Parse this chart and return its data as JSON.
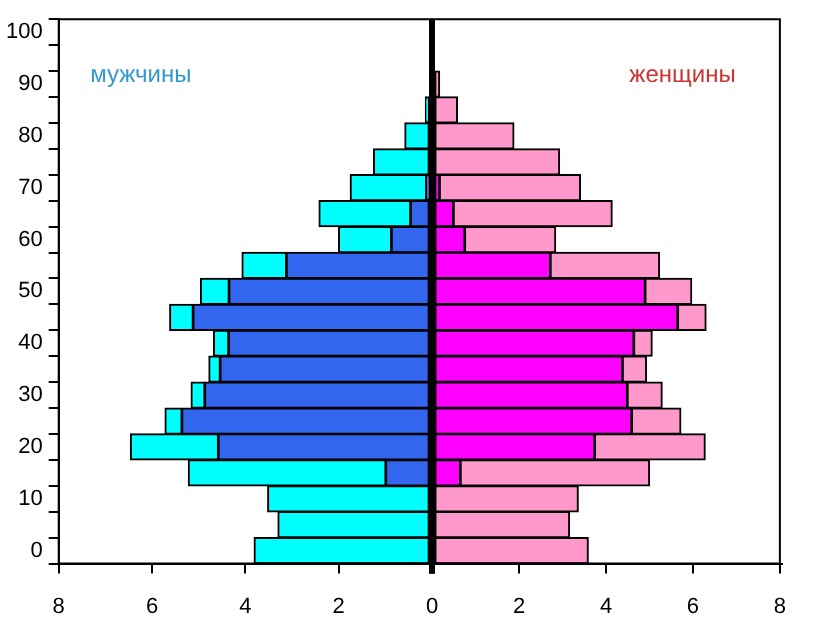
{
  "chart_data": [
    {
      "type": "bar",
      "orientation": "horizontal",
      "stacked": true,
      "categories": [
        "100",
        null,
        "90",
        null,
        "80",
        null,
        "70",
        null,
        "60",
        null,
        "50",
        null,
        "40",
        null,
        "30",
        null,
        "20",
        null,
        "10",
        null,
        "0"
      ],
      "series": [
        {
          "color": "#3366ee",
          "values": [
            null,
            null,
            null,
            null,
            null,
            null,
            0.12,
            0.46,
            0.87,
            3.12,
            4.35,
            5.12,
            4.36,
            4.54,
            4.87,
            5.36,
            4.58,
            0.99,
            null,
            null,
            null
          ]
        },
        {
          "color": "#00ffff",
          "values": [
            null,
            null,
            null,
            0.14,
            0.58,
            1.25,
            1.63,
            1.96,
            1.13,
            0.95,
            0.61,
            0.5,
            0.32,
            0.24,
            0.29,
            0.36,
            1.88,
            4.23,
            3.52,
            3.3,
            3.81
          ]
        }
      ],
      "xlim": [
        8,
        0
      ],
      "xticks": [
        8,
        6,
        4,
        2,
        {
          "value": 0,
          "label": null
        }
      ],
      "annotations": [
        "мужчины"
      ],
      "legend": false,
      "grid": false
    },
    {
      "type": "bar",
      "orientation": "horizontal",
      "stacked": true,
      "categories": [
        "100",
        null,
        "90",
        null,
        "80",
        null,
        "70",
        null,
        "60",
        null,
        "50",
        null,
        "40",
        null,
        "30",
        null,
        "20",
        null,
        "10",
        null,
        "0"
      ],
      "series": [
        {
          "color": "#ff00ff",
          "values": [
            null,
            null,
            null,
            null,
            null,
            null,
            0.17,
            0.49,
            0.75,
            2.72,
            4.9,
            5.65,
            4.64,
            4.38,
            4.49,
            4.59,
            3.74,
            0.65,
            null,
            null,
            null
          ]
        },
        {
          "color": "#ff99cc",
          "values": [
            null,
            null,
            0.17,
            0.58,
            1.88,
            2.93,
            3.24,
            3.65,
            2.09,
            2.51,
            1.07,
            0.65,
            0.42,
            0.55,
            0.8,
            1.13,
            2.54,
            4.35,
            3.36,
            3.16,
            3.59
          ]
        }
      ],
      "xlim": [
        0,
        8
      ],
      "xticks": [
        0,
        2,
        4,
        6,
        8
      ],
      "tick_labels": "x",
      "annotations": [
        "женщины"
      ],
      "legend": false,
      "grid": false
    }
  ]
}
